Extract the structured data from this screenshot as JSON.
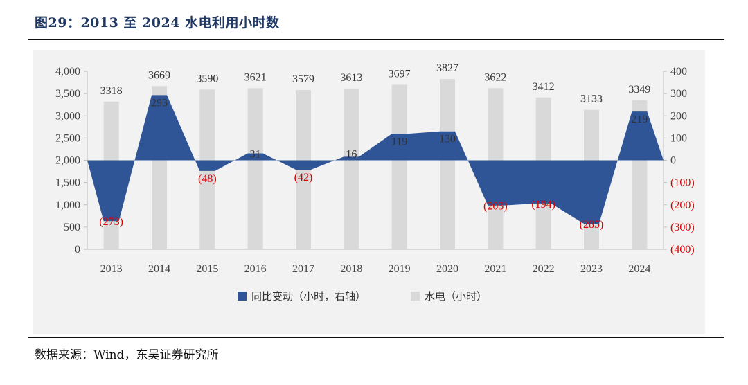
{
  "title": "图29：2013 至 2024 水电利用小时数",
  "source": "数据来源：Wind，东吴证券研究所",
  "colors": {
    "bar": "#d9d9d9",
    "area": "#2f5597",
    "negative_label": "#e00000",
    "title": "#1f3864"
  },
  "chart_data": {
    "type": "bar",
    "categories": [
      "2013",
      "2014",
      "2015",
      "2016",
      "2017",
      "2018",
      "2019",
      "2020",
      "2021",
      "2022",
      "2023",
      "2024"
    ],
    "series": [
      {
        "name": "水电（小时）",
        "type": "bar",
        "axis": "left",
        "values": [
          3318,
          3669,
          3590,
          3621,
          3579,
          3613,
          3697,
          3827,
          3622,
          3412,
          3133,
          3349
        ]
      },
      {
        "name": "同比变动（小时，右轴）",
        "type": "area",
        "axis": "right",
        "values": [
          -273,
          293,
          -48,
          31,
          -42,
          16,
          119,
          130,
          -203,
          -194,
          -285,
          219
        ],
        "labels": [
          "(273)",
          "293",
          "(48)",
          "31",
          "(42)",
          "16",
          "119",
          "130",
          "(203)",
          "(194)",
          "(285)",
          "219"
        ]
      }
    ],
    "left_axis": {
      "min": 0,
      "max": 4000,
      "step": 500,
      "ticks": [
        "0",
        "500",
        "1,000",
        "1,500",
        "2,000",
        "2,500",
        "3,000",
        "3,500",
        "4,000"
      ]
    },
    "right_axis": {
      "min": -400,
      "max": 400,
      "step": 100,
      "ticks": [
        "(400)",
        "(300)",
        "(200)",
        "(100)",
        "0",
        "100",
        "200",
        "300",
        "400"
      ]
    },
    "legend": [
      "同比变动（小时，右轴）",
      "水电（小时）"
    ],
    "legend_position": "bottom"
  }
}
